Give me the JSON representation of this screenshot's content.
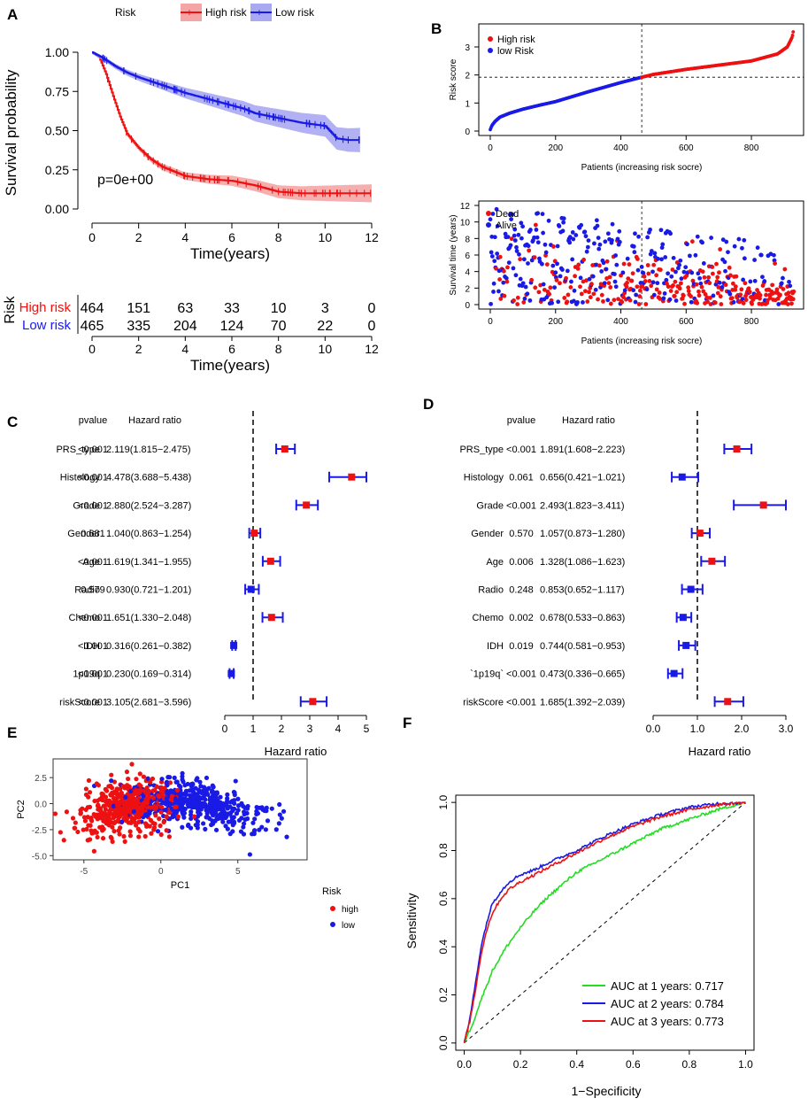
{
  "figure": {
    "label_A": "A",
    "label_B": "B",
    "label_C": "C",
    "label_D": "D",
    "label_E": "E",
    "label_F": "F"
  },
  "colors": {
    "high": "#ee1111",
    "low": "#1a1ae6",
    "high_band": "#f4a6a6",
    "low_band": "#a9a9f2",
    "green": "#22dd22",
    "black": "#000000"
  },
  "chart_data": [
    {
      "panel": "A",
      "type": "line",
      "subtype": "kaplan-meier",
      "legend_title": "Risk",
      "ylabel": "Survival probability",
      "xlabel": "Time(years)",
      "pvalue_text": "p=0e+00",
      "xlim": [
        0,
        12
      ],
      "ylim": [
        0,
        1
      ],
      "xticks": [
        "0",
        "2",
        "4",
        "6",
        "8",
        "10",
        "12"
      ],
      "yticks": [
        "0.00",
        "0.25",
        "0.50",
        "0.75",
        "1.00"
      ],
      "series": [
        {
          "name": "High risk",
          "x": [
            0,
            0.3,
            0.6,
            0.9,
            1.2,
            1.5,
            2,
            2.5,
            3,
            3.5,
            4,
            5,
            6,
            7,
            7.5,
            8,
            9,
            10,
            11,
            12
          ],
          "y": [
            1,
            0.97,
            0.86,
            0.72,
            0.59,
            0.48,
            0.39,
            0.32,
            0.27,
            0.24,
            0.21,
            0.19,
            0.18,
            0.15,
            0.13,
            0.11,
            0.1,
            0.1,
            0.1,
            0.1
          ]
        },
        {
          "name": "Low risk",
          "x": [
            0,
            0.5,
            1,
            1.5,
            2,
            3,
            4,
            5,
            6,
            6.5,
            7,
            8,
            9,
            10,
            10.5,
            11,
            11.5
          ],
          "y": [
            1,
            0.96,
            0.91,
            0.87,
            0.84,
            0.79,
            0.74,
            0.7,
            0.66,
            0.64,
            0.61,
            0.58,
            0.55,
            0.53,
            0.45,
            0.44,
            0.44
          ]
        }
      ],
      "risk_table": {
        "ylabel": "Risk",
        "xlabel": "Time(years)",
        "rows": [
          {
            "name": "High risk",
            "counts": [
              "464",
              "151",
              "63",
              "33",
              "10",
              "3",
              "0"
            ]
          },
          {
            "name": "Low risk",
            "counts": [
              "465",
              "335",
              "204",
              "124",
              "70",
              "22",
              "0"
            ]
          }
        ]
      }
    },
    {
      "panel": "B-top",
      "type": "scatter",
      "title": "",
      "xlabel": "Patients (increasing risk socre)",
      "ylabel": "Risk score",
      "xlim": [
        0,
        930
      ],
      "ylim": [
        0,
        3.6
      ],
      "cutoff_x": 464,
      "cutoff_y": 1.92,
      "xticks": [
        "0",
        "200",
        "400",
        "600",
        "800"
      ],
      "yticks": [
        "0",
        "1",
        "2",
        "3"
      ],
      "legend": [
        "High risk",
        "low Risk"
      ],
      "curve_x": [
        0,
        5,
        15,
        30,
        60,
        100,
        150,
        200,
        300,
        400,
        464,
        500,
        600,
        700,
        800,
        880,
        910,
        925,
        929
      ],
      "curve_y": [
        0.05,
        0.2,
        0.35,
        0.5,
        0.64,
        0.78,
        0.92,
        1.05,
        1.4,
        1.73,
        1.92,
        2.02,
        2.2,
        2.35,
        2.5,
        2.75,
        3.0,
        3.35,
        3.6
      ]
    },
    {
      "panel": "B-bottom",
      "type": "scatter",
      "xlabel": "Patients (increasing risk socre)",
      "ylabel": "Survival time (years)",
      "xlim": [
        0,
        930
      ],
      "ylim": [
        0,
        12
      ],
      "cutoff_x": 464,
      "xticks": [
        "0",
        "200",
        "400",
        "600",
        "800"
      ],
      "yticks": [
        "0",
        "2",
        "4",
        "6",
        "8",
        "10",
        "12"
      ],
      "legend": [
        "Dead",
        "Alive"
      ]
    },
    {
      "panel": "C",
      "type": "forest",
      "xlabel": "Hazard ratio",
      "header": {
        "pvalue": "pvalue",
        "hr": "Hazard ratio"
      },
      "xlim": [
        0,
        5
      ],
      "xticks": [
        "0",
        "1",
        "2",
        "3",
        "4",
        "5"
      ],
      "ref": 1,
      "rows": [
        {
          "name": "PRS_type",
          "p": "<0.001",
          "hrtext": "2.119(1.815−2.475)",
          "hr": 2.119,
          "lo": 1.815,
          "hi": 2.475
        },
        {
          "name": "Histology",
          "p": "<0.001",
          "hrtext": "4.478(3.688−5.438)",
          "hr": 4.478,
          "lo": 3.688,
          "hi": 5.438
        },
        {
          "name": "Grade",
          "p": "<0.001",
          "hrtext": "2.880(2.524−3.287)",
          "hr": 2.88,
          "lo": 2.524,
          "hi": 3.287
        },
        {
          "name": "Gender",
          "p": "0.681",
          "hrtext": "1.040(0.863−1.254)",
          "hr": 1.04,
          "lo": 0.863,
          "hi": 1.254
        },
        {
          "name": "Age",
          "p": "<0.001",
          "hrtext": "1.619(1.341−1.955)",
          "hr": 1.619,
          "lo": 1.341,
          "hi": 1.955
        },
        {
          "name": "Radio",
          "p": "0.579",
          "hrtext": "0.930(0.721−1.201)",
          "hr": 0.93,
          "lo": 0.721,
          "hi": 1.201
        },
        {
          "name": "Chemo",
          "p": "<0.001",
          "hrtext": "1.651(1.330−2.048)",
          "hr": 1.651,
          "lo": 1.33,
          "hi": 2.048
        },
        {
          "name": "IDH",
          "p": "<0.001",
          "hrtext": "0.316(0.261−0.382)",
          "hr": 0.316,
          "lo": 0.261,
          "hi": 0.382
        },
        {
          "name": "1p19q",
          "p": "<0.001",
          "hrtext": "0.230(0.169−0.314)",
          "hr": 0.23,
          "lo": 0.169,
          "hi": 0.314
        },
        {
          "name": "riskScore",
          "p": "<0.001",
          "hrtext": "3.105(2.681−3.596)",
          "hr": 3.105,
          "lo": 2.681,
          "hi": 3.596
        }
      ]
    },
    {
      "panel": "D",
      "type": "forest",
      "xlabel": "Hazard ratio",
      "header": {
        "pvalue": "pvalue",
        "hr": "Hazard ratio"
      },
      "xlim": [
        0,
        3
      ],
      "xticks": [
        "0.0",
        "1.0",
        "2.0",
        "3.0"
      ],
      "ref": 1,
      "rows": [
        {
          "name": "PRS_type",
          "p": "<0.001",
          "hrtext": "1.891(1.608−2.223)",
          "hr": 1.891,
          "lo": 1.608,
          "hi": 2.223
        },
        {
          "name": "Histology",
          "p": "0.061",
          "hrtext": "0.656(0.421−1.021)",
          "hr": 0.656,
          "lo": 0.421,
          "hi": 1.021
        },
        {
          "name": "Grade",
          "p": "<0.001",
          "hrtext": "2.493(1.823−3.411)",
          "hr": 2.493,
          "lo": 1.823,
          "hi": 3.411
        },
        {
          "name": "Gender",
          "p": "0.570",
          "hrtext": "1.057(0.873−1.280)",
          "hr": 1.057,
          "lo": 0.873,
          "hi": 1.28
        },
        {
          "name": "Age",
          "p": "0.006",
          "hrtext": "1.328(1.086−1.623)",
          "hr": 1.328,
          "lo": 1.086,
          "hi": 1.623
        },
        {
          "name": "Radio",
          "p": "0.248",
          "hrtext": "0.853(0.652−1.117)",
          "hr": 0.853,
          "lo": 0.652,
          "hi": 1.117
        },
        {
          "name": "Chemo",
          "p": "0.002",
          "hrtext": "0.678(0.533−0.863)",
          "hr": 0.678,
          "lo": 0.533,
          "hi": 0.863
        },
        {
          "name": "IDH",
          "p": "0.019",
          "hrtext": "0.744(0.581−0.953)",
          "hr": 0.744,
          "lo": 0.581,
          "hi": 0.953
        },
        {
          "name": "`1p19q`",
          "p": "<0.001",
          "hrtext": "0.473(0.336−0.665)",
          "hr": 0.473,
          "lo": 0.336,
          "hi": 0.665
        },
        {
          "name": "riskScore",
          "p": "<0.001",
          "hrtext": "1.685(1.392−2.039)",
          "hr": 1.685,
          "lo": 1.392,
          "hi": 2.039
        }
      ]
    },
    {
      "panel": "E",
      "type": "scatter",
      "subtype": "pca",
      "xlabel": "PC1",
      "ylabel": "PC2",
      "legend_title": "Risk",
      "legend": [
        "high",
        "low"
      ],
      "xlim": [
        -7,
        9.5
      ],
      "ylim": [
        -5.4,
        4.3
      ],
      "xticks": [
        "-5",
        "0",
        "5"
      ],
      "yticks": [
        "-5.0",
        "-2.5",
        "0.0",
        "2.5"
      ],
      "high_center": [
        -2.3,
        0.0
      ],
      "low_center": [
        1.2,
        0.2
      ]
    },
    {
      "panel": "F",
      "type": "line",
      "subtype": "roc",
      "xlabel": "1−Specificity",
      "ylabel": "Sensitivity",
      "xlim": [
        0,
        1
      ],
      "ylim": [
        0,
        1
      ],
      "xticks": [
        "0.0",
        "0.2",
        "0.4",
        "0.6",
        "0.8",
        "1.0"
      ],
      "yticks": [
        "0.0",
        "0.2",
        "0.4",
        "0.6",
        "0.8",
        "1.0"
      ],
      "series": [
        {
          "name": "AUC at 1 years: 0.717",
          "x": [
            0,
            0.03,
            0.06,
            0.1,
            0.15,
            0.2,
            0.25,
            0.3,
            0.35,
            0.4,
            0.5,
            0.6,
            0.7,
            0.8,
            0.9,
            1.0
          ],
          "y": [
            0,
            0.08,
            0.18,
            0.3,
            0.4,
            0.48,
            0.55,
            0.61,
            0.66,
            0.71,
            0.77,
            0.83,
            0.89,
            0.93,
            0.97,
            1.0
          ]
        },
        {
          "name": "AUC at 2 years: 0.784",
          "x": [
            0,
            0.02,
            0.04,
            0.06,
            0.08,
            0.1,
            0.13,
            0.16,
            0.2,
            0.25,
            0.3,
            0.4,
            0.5,
            0.6,
            0.7,
            0.8,
            0.9,
            1.0
          ],
          "y": [
            0,
            0.1,
            0.25,
            0.4,
            0.5,
            0.58,
            0.63,
            0.67,
            0.7,
            0.72,
            0.75,
            0.8,
            0.86,
            0.91,
            0.95,
            0.98,
            0.995,
            1.0
          ]
        },
        {
          "name": "AUC at 3 years: 0.773",
          "x": [
            0,
            0.02,
            0.04,
            0.06,
            0.08,
            0.1,
            0.13,
            0.16,
            0.2,
            0.25,
            0.3,
            0.4,
            0.5,
            0.6,
            0.7,
            0.8,
            0.9,
            1.0
          ],
          "y": [
            0,
            0.09,
            0.22,
            0.37,
            0.47,
            0.54,
            0.6,
            0.64,
            0.67,
            0.7,
            0.73,
            0.79,
            0.85,
            0.9,
            0.94,
            0.97,
            0.99,
            1.0
          ]
        }
      ]
    }
  ]
}
